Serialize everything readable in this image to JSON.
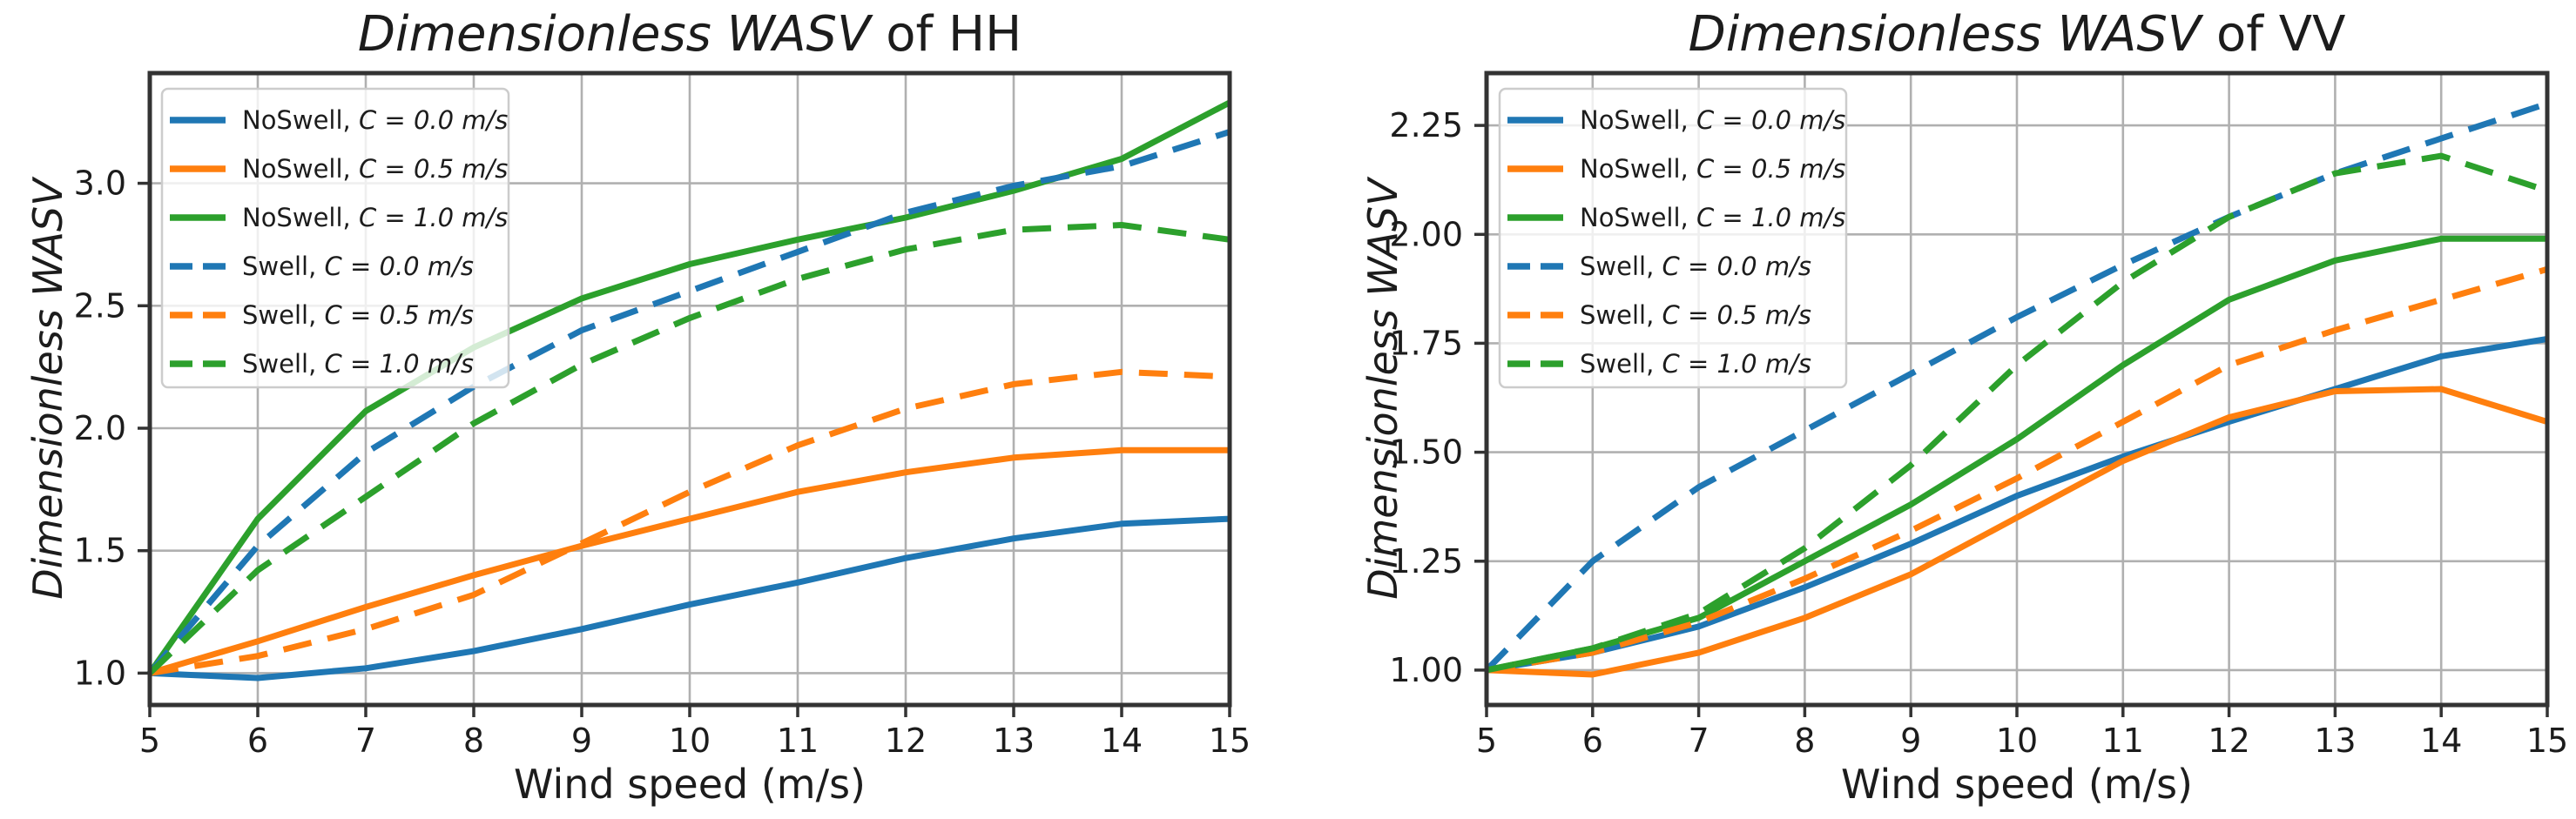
{
  "figure": {
    "background": "#ffffff",
    "grid_color": "#b0b0b0",
    "spine_color": "#333333",
    "text_color": "#1c1c1c",
    "legend_border_color": "#cccccc",
    "accent_colors": {
      "blue": "#1f77b4",
      "orange": "#ff7f0e",
      "green": "#2ca02c"
    }
  },
  "chart_data": [
    {
      "type": "line",
      "id": "hh",
      "title_math": "Dimensionless WASV",
      "title_roman": " of HH",
      "xlabel": "Wind speed (m/s)",
      "ylabel": "Dimensionless WASV",
      "x": [
        5,
        6,
        7,
        8,
        9,
        10,
        11,
        12,
        13,
        14,
        15
      ],
      "xlim": [
        5,
        15
      ],
      "ylim": [
        0.87,
        3.45
      ],
      "xticks": [
        5,
        6,
        7,
        8,
        9,
        10,
        11,
        12,
        13,
        14,
        15
      ],
      "xtick_labels": [
        "5",
        "6",
        "7",
        "8",
        "9",
        "10",
        "11",
        "12",
        "13",
        "14",
        "15"
      ],
      "yticks": [
        1.0,
        1.5,
        2.0,
        2.5,
        3.0
      ],
      "ytick_labels": [
        "1.0",
        "1.5",
        "2.0",
        "2.5",
        "3.0"
      ],
      "grid": true,
      "legend_position": "upper left",
      "series": [
        {
          "id": "noswell-c00",
          "label_roman": "NoSwell, ",
          "label_math": "C = 0.0 m/s",
          "color": "#1f77b4",
          "style": "solid",
          "values": [
            1.0,
            0.98,
            1.02,
            1.09,
            1.18,
            1.28,
            1.37,
            1.47,
            1.55,
            1.61,
            1.63
          ]
        },
        {
          "id": "noswell-c05",
          "label_roman": "NoSwell, ",
          "label_math": "C = 0.5 m/s",
          "color": "#ff7f0e",
          "style": "solid",
          "values": [
            1.0,
            1.13,
            1.27,
            1.4,
            1.52,
            1.63,
            1.74,
            1.82,
            1.88,
            1.91,
            1.91
          ]
        },
        {
          "id": "noswell-c10",
          "label_roman": "NoSwell, ",
          "label_math": "C = 1.0 m/s",
          "color": "#2ca02c",
          "style": "solid",
          "values": [
            1.0,
            1.63,
            2.07,
            2.33,
            2.53,
            2.67,
            2.77,
            2.86,
            2.97,
            3.1,
            3.33
          ]
        },
        {
          "id": "swell-c00",
          "label_roman": "Swell, ",
          "label_math": "C = 0.0 m/s",
          "color": "#1f77b4",
          "style": "dashed",
          "values": [
            1.0,
            1.52,
            1.9,
            2.17,
            2.4,
            2.56,
            2.72,
            2.88,
            2.99,
            3.07,
            3.21
          ]
        },
        {
          "id": "swell-c05",
          "label_roman": "Swell, ",
          "label_math": "C = 0.5 m/s",
          "color": "#ff7f0e",
          "style": "dashed",
          "values": [
            1.0,
            1.07,
            1.18,
            1.32,
            1.53,
            1.74,
            1.93,
            2.08,
            2.18,
            2.23,
            2.21
          ]
        },
        {
          "id": "swell-c10",
          "label_roman": "Swell, ",
          "label_math": "C = 1.0 m/s",
          "color": "#2ca02c",
          "style": "dashed",
          "values": [
            1.0,
            1.42,
            1.72,
            2.02,
            2.26,
            2.45,
            2.61,
            2.73,
            2.81,
            2.83,
            2.77
          ]
        }
      ]
    },
    {
      "type": "line",
      "id": "vv",
      "title_math": "Dimensionless WASV",
      "title_roman": " of VV",
      "xlabel": "Wind speed (m/s)",
      "ylabel": "Dimensionless WASV",
      "x": [
        5,
        6,
        7,
        8,
        9,
        10,
        11,
        12,
        13,
        14,
        15
      ],
      "xlim": [
        5,
        15
      ],
      "ylim": [
        0.92,
        2.37
      ],
      "xticks": [
        5,
        6,
        7,
        8,
        9,
        10,
        11,
        12,
        13,
        14,
        15
      ],
      "xtick_labels": [
        "5",
        "6",
        "7",
        "8",
        "9",
        "10",
        "11",
        "12",
        "13",
        "14",
        "15"
      ],
      "yticks": [
        1.0,
        1.25,
        1.5,
        1.75,
        2.0,
        2.25
      ],
      "ytick_labels": [
        "1.00",
        "1.25",
        "1.50",
        "1.75",
        "2.00",
        "2.25"
      ],
      "grid": true,
      "legend_position": "upper left",
      "series": [
        {
          "id": "noswell-c00",
          "label_roman": "NoSwell, ",
          "label_math": "C = 0.0 m/s",
          "color": "#1f77b4",
          "style": "solid",
          "values": [
            1.0,
            1.04,
            1.1,
            1.19,
            1.29,
            1.4,
            1.49,
            1.57,
            1.645,
            1.72,
            1.76
          ]
        },
        {
          "id": "noswell-c05",
          "label_roman": "NoSwell, ",
          "label_math": "C = 0.5 m/s",
          "color": "#ff7f0e",
          "style": "solid",
          "values": [
            1.0,
            0.99,
            1.04,
            1.12,
            1.22,
            1.35,
            1.48,
            1.58,
            1.64,
            1.645,
            1.57
          ]
        },
        {
          "id": "noswell-c10",
          "label_roman": "NoSwell, ",
          "label_math": "C = 1.0 m/s",
          "color": "#2ca02c",
          "style": "solid",
          "values": [
            1.0,
            1.05,
            1.12,
            1.25,
            1.38,
            1.53,
            1.7,
            1.85,
            1.94,
            1.99,
            1.99
          ]
        },
        {
          "id": "swell-c00",
          "label_roman": "Swell, ",
          "label_math": "C = 0.0 m/s",
          "color": "#1f77b4",
          "style": "dashed",
          "values": [
            1.0,
            1.25,
            1.42,
            1.55,
            1.68,
            1.81,
            1.93,
            2.04,
            2.14,
            2.22,
            2.3
          ]
        },
        {
          "id": "swell-c05",
          "label_roman": "Swell, ",
          "label_math": "C = 0.5 m/s",
          "color": "#ff7f0e",
          "style": "dashed",
          "values": [
            1.0,
            1.04,
            1.11,
            1.21,
            1.32,
            1.44,
            1.57,
            1.7,
            1.78,
            1.85,
            1.92
          ]
        },
        {
          "id": "swell-c10",
          "label_roman": "Swell, ",
          "label_math": "C = 1.0 m/s",
          "color": "#2ca02c",
          "style": "dashed",
          "values": [
            1.0,
            1.05,
            1.13,
            1.28,
            1.47,
            1.7,
            1.89,
            2.04,
            2.14,
            2.18,
            2.1
          ]
        }
      ]
    }
  ]
}
